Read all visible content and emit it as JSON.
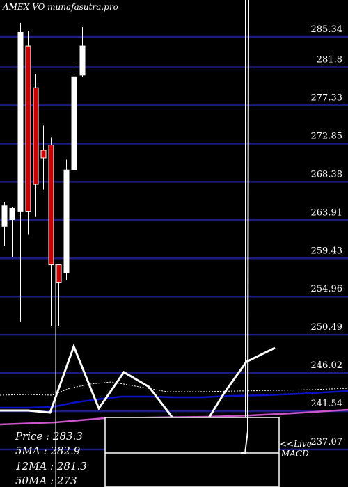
{
  "header": {
    "title": "AMEX VO munafasutra.pro"
  },
  "chart_data": {
    "type": "candlestick",
    "price_ticks": [
      285.34,
      281.8,
      277.33,
      272.85,
      268.38,
      263.91,
      259.43,
      254.96,
      250.49,
      246.02,
      241.54,
      237.07
    ],
    "ylim": [
      237.07,
      285.34
    ],
    "candles": [
      {
        "open": 262.2,
        "close": 264.6,
        "high": 265.0,
        "low": 259.9,
        "color": "white"
      },
      {
        "open": 263.0,
        "close": 264.3,
        "high": 264.5,
        "low": 258.6,
        "color": "white"
      },
      {
        "open": 263.9,
        "close": 284.9,
        "high": 286.0,
        "low": 251.0,
        "color": "white"
      },
      {
        "open": 283.3,
        "close": 263.9,
        "high": 285.0,
        "low": 261.2,
        "color": "red"
      },
      {
        "open": 278.4,
        "close": 267.1,
        "high": 280.0,
        "low": 263.3,
        "color": "red"
      },
      {
        "open": 271.1,
        "close": 270.2,
        "high": 274.0,
        "low": 266.5,
        "color": "red"
      },
      {
        "open": 271.7,
        "close": 257.7,
        "high": 272.6,
        "low": 250.5,
        "color": "red"
      },
      {
        "open": 257.7,
        "close": 255.6,
        "high": 257.7,
        "low": 250.5,
        "color": "red"
      },
      {
        "open": 256.8,
        "close": 268.8,
        "high": 270.0,
        "low": 255.9,
        "color": "white"
      },
      {
        "open": 268.8,
        "close": 279.7,
        "high": 280.9,
        "low": 268.8,
        "color": "white"
      },
      {
        "open": 279.9,
        "close": 283.3,
        "high": 285.5,
        "low": 279.7,
        "color": "white"
      }
    ],
    "info": {
      "price_label": "Price  : 283.3",
      "ma5_label": "5MA : 282.9",
      "ma12_label": "12MA : 281.3",
      "ma50_label": "50MA : 273"
    },
    "macd": {
      "live_label": "<<Live",
      "name": "MACD"
    },
    "colors": {
      "background": "#000000",
      "grid": "#1b1b80",
      "up_candle": "#ffffff",
      "down_candle": "#cc0000",
      "macd_line": "#ffffff",
      "ma_blue": "#0a10c8",
      "ma_magenta": "#cc55cc"
    }
  }
}
